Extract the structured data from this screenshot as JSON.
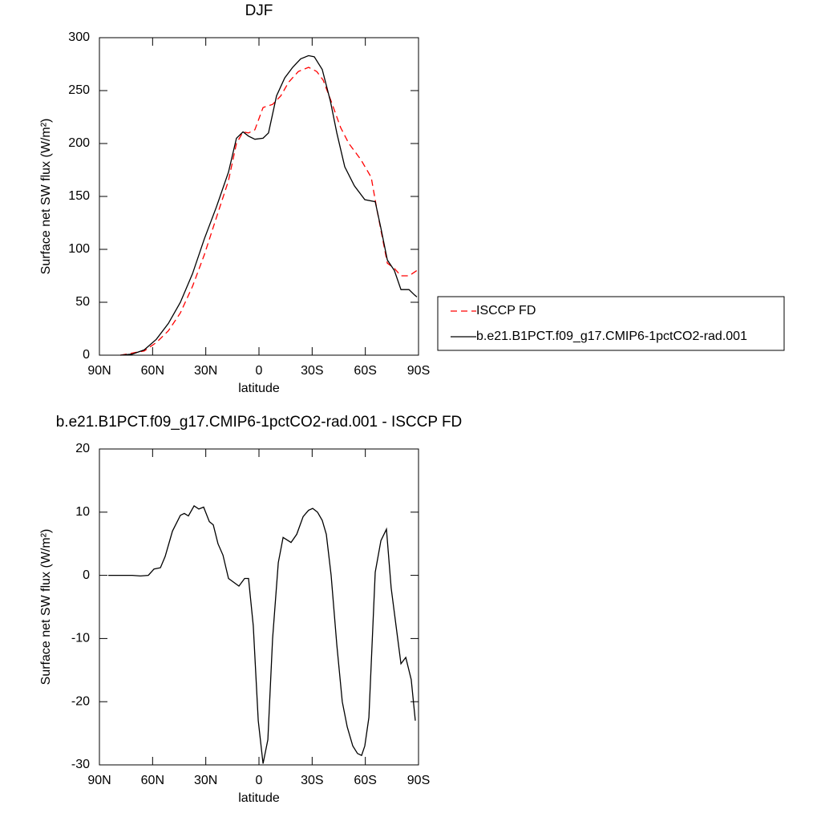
{
  "chart_data": [
    {
      "type": "line",
      "title": "DJF",
      "xlabel": "latitude",
      "ylabel": "Surface net SW flux (W/m²)",
      "xlim": [
        90,
        -90
      ],
      "ylim": [
        0,
        300
      ],
      "xticks": [
        {
          "value": 90,
          "label": "90N"
        },
        {
          "value": 60,
          "label": "60N"
        },
        {
          "value": 30,
          "label": "30N"
        },
        0,
        {
          "value": -30,
          "label": "30S"
        },
        {
          "value": -60,
          "label": "60S"
        },
        {
          "value": -90,
          "label": "90S"
        }
      ],
      "yticks": [
        0,
        50,
        100,
        150,
        200,
        250,
        300
      ],
      "legend": "right",
      "series": [
        {
          "name": "ISCCP FD",
          "color": "#ff0000",
          "line_style": "dashed",
          "x": [
            78.2,
            64.7,
            57.9,
            51.1,
            44.3,
            37.5,
            30.8,
            24.0,
            17.2,
            12.7,
            9.0,
            5.9,
            2.3,
            -2.3,
            -7.7,
            -12.3,
            -16.8,
            -22.2,
            -28.0,
            -32.6,
            -36.2,
            -40.7,
            -46.1,
            -50.7,
            -57.4,
            -63.3,
            -66.5,
            -72.4,
            -76.4,
            -80.1,
            -84.6,
            -89.1
          ],
          "values": [
            0,
            4,
            12,
            23,
            40,
            65,
            95,
            130,
            165,
            200,
            211,
            210,
            213,
            234,
            237,
            245,
            258,
            268,
            272,
            268,
            260,
            240,
            215,
            200,
            185,
            168,
            138,
            87,
            82,
            75,
            75,
            80
          ]
        },
        {
          "name": "b.e21.B1PCT.f09_g17.CMIP6-1pctCO2-rad.001",
          "color": "#000000",
          "line_style": "solid",
          "x": [
            78.2,
            71.5,
            64.7,
            57.9,
            51.1,
            44.3,
            37.5,
            30.8,
            24.0,
            17.2,
            12.7,
            9.0,
            5.9,
            2.3,
            -2.3,
            -5.4,
            -9.9,
            -14.5,
            -19.0,
            -23.5,
            -28.0,
            -31.2,
            -35.7,
            -40.3,
            -43.9,
            -48.4,
            -53.8,
            -59.7,
            -65.6,
            -68.8,
            -72.4,
            -76.4,
            -80.1,
            -84.6,
            -87.7,
            -89.1
          ],
          "values": [
            0,
            1,
            5,
            15,
            30,
            50,
            77,
            110,
            140,
            173,
            205,
            211,
            207,
            204,
            205,
            210,
            245,
            262,
            272,
            280,
            283,
            282,
            270,
            240,
            210,
            178,
            160,
            147,
            145,
            120,
            90,
            80,
            62,
            62,
            57,
            55
          ]
        }
      ]
    },
    {
      "type": "line",
      "title": "b.e21.B1PCT.f09_g17.CMIP6-1pctCO2-rad.001 - ISCCP FD",
      "xlabel": "latitude",
      "ylabel": "Surface net SW flux (W/m²)",
      "xlim": [
        90,
        -90
      ],
      "ylim": [
        -30,
        20
      ],
      "xticks": [
        {
          "value": 90,
          "label": "90N"
        },
        {
          "value": 60,
          "label": "60N"
        },
        {
          "value": 30,
          "label": "30N"
        },
        0,
        {
          "value": -30,
          "label": "30S"
        },
        {
          "value": -60,
          "label": "60S"
        },
        {
          "value": -90,
          "label": "90S"
        }
      ],
      "yticks": [
        -30,
        -20,
        -10,
        0,
        10,
        20
      ],
      "color": "#000000",
      "x": [
        85,
        71.5,
        66.9,
        62.4,
        59.2,
        55.6,
        52.9,
        48.8,
        44.3,
        42.1,
        39.8,
        36.6,
        33.9,
        31.2,
        28.0,
        25.8,
        23.1,
        20.3,
        17.2,
        11.3,
        8.1,
        5.9,
        3.2,
        0.4,
        -2.3,
        -5.0,
        -7.7,
        -10.9,
        -13.6,
        -18.1,
        -21.3,
        -24.9,
        -28.0,
        -30.3,
        -33.0,
        -35.7,
        -38.0,
        -40.7,
        -43.9,
        -47.0,
        -49.8,
        -52.9,
        -55.6,
        -57.9,
        -59.7,
        -62.0,
        -65.6,
        -68.8,
        -71.9,
        -74.6,
        -77.8,
        -80.1,
        -82.8,
        -85.9,
        -88.2
      ],
      "values": [
        0,
        0,
        -0.1,
        0,
        1,
        1.2,
        3,
        7,
        9.5,
        9.8,
        9.4,
        11,
        10.5,
        10.8,
        8.5,
        8,
        5,
        3.2,
        -0.5,
        -1.7,
        -0.5,
        -0.5,
        -8,
        -23,
        -29.8,
        -26,
        -10,
        2,
        6,
        5.2,
        6.5,
        9.3,
        10.3,
        10.6,
        10,
        8.7,
        6.5,
        0,
        -11,
        -20,
        -24,
        -27,
        -28.2,
        -28.5,
        -27,
        -22.5,
        0.5,
        5.5,
        7.3,
        -2,
        -9,
        -14,
        -13,
        -16.5,
        -23
      ]
    }
  ]
}
